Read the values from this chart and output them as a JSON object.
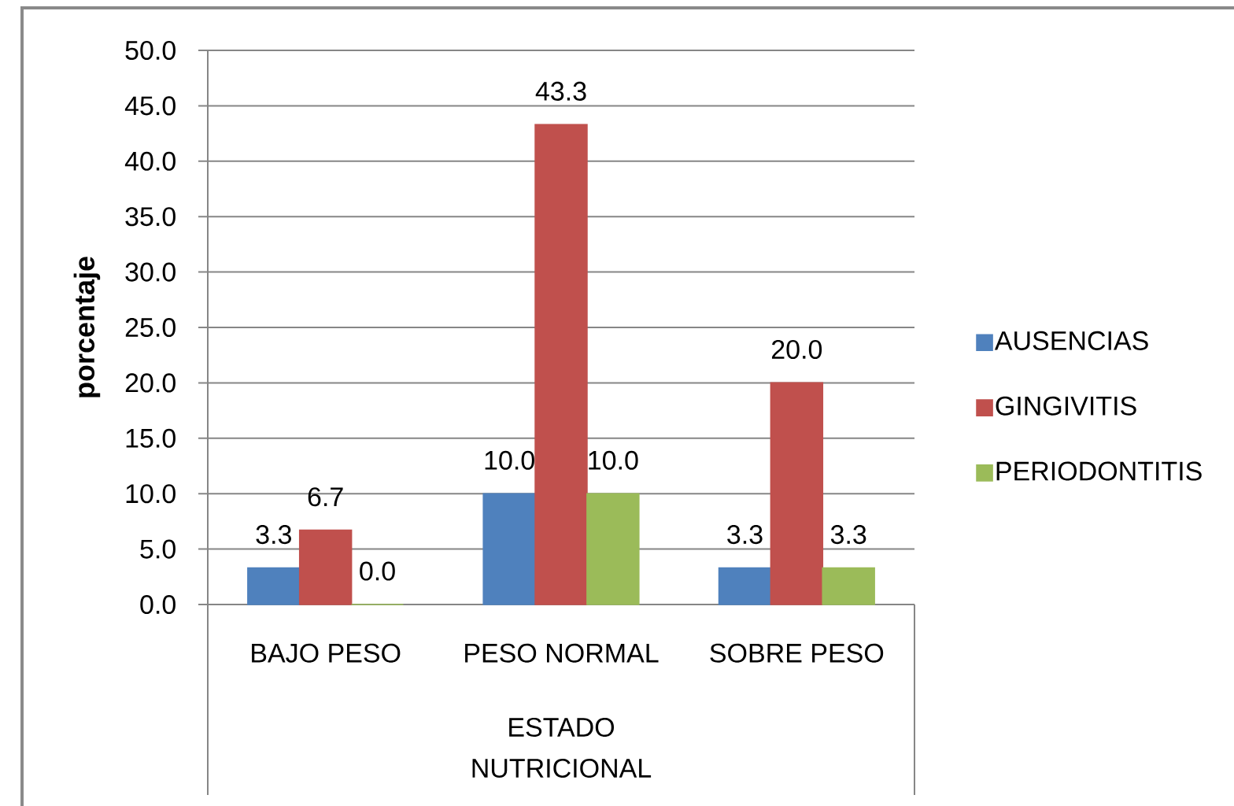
{
  "chart_data": {
    "type": "bar",
    "xlabel": "ESTADO NUTRICIONAL",
    "ylabel": "porcentaje",
    "categories": [
      "BAJO PESO",
      "PESO NORMAL",
      "SOBRE PESO"
    ],
    "series": [
      {
        "name": "AUSENCIAS",
        "color": "#4f81bd",
        "values": [
          3.3,
          10.0,
          3.3
        ],
        "value_labels": [
          "3.3",
          "10.0",
          "3.3"
        ]
      },
      {
        "name": "GINGIVITIS",
        "color": "#c0504d",
        "values": [
          6.7,
          43.3,
          20.0
        ],
        "value_labels": [
          "6.7",
          "43.3",
          "20.0"
        ]
      },
      {
        "name": "PERIODONTITIS",
        "color": "#9bbb59",
        "values": [
          0.0,
          10.0,
          3.3
        ],
        "value_labels": [
          "0.0",
          "10.0",
          "3.3"
        ]
      }
    ],
    "ylim": [
      0,
      50
    ],
    "yticks": [
      {
        "value": 0,
        "label": "0.0"
      },
      {
        "value": 5,
        "label": "5.0"
      },
      {
        "value": 10,
        "label": "10.0"
      },
      {
        "value": 15,
        "label": "15.0"
      },
      {
        "value": 20,
        "label": "20.0"
      },
      {
        "value": 25,
        "label": "25.0"
      },
      {
        "value": 30,
        "label": "30.0"
      },
      {
        "value": 35,
        "label": "35.0"
      },
      {
        "value": 40,
        "label": "40.0"
      },
      {
        "value": 45,
        "label": "45.0"
      },
      {
        "value": 50,
        "label": "50.0"
      }
    ],
    "grid": "y",
    "legend": "right"
  }
}
